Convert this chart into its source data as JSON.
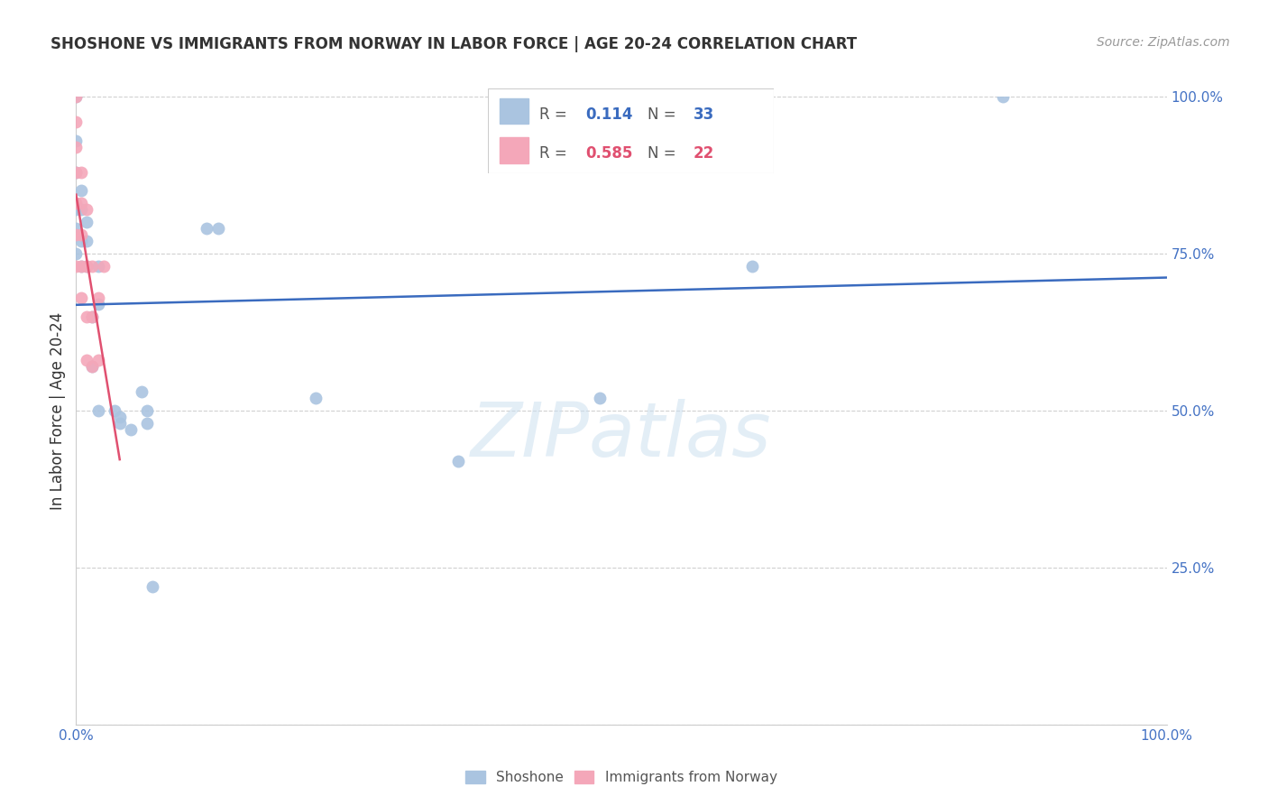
{
  "title": "SHOSHONE VS IMMIGRANTS FROM NORWAY IN LABOR FORCE | AGE 20-24 CORRELATION CHART",
  "source": "Source: ZipAtlas.com",
  "ylabel": "In Labor Force | Age 20-24",
  "xlim": [
    0.0,
    1.0
  ],
  "ylim": [
    0.0,
    1.0
  ],
  "xtick_pos": [
    0.0,
    0.1,
    0.2,
    0.3,
    0.4,
    0.5,
    0.6,
    0.7,
    0.8,
    0.9,
    1.0
  ],
  "xtick_labels": [
    "0.0%",
    "",
    "",
    "",
    "",
    "",
    "",
    "",
    "",
    "",
    "100.0%"
  ],
  "ytick_pos": [
    0.0,
    0.25,
    0.5,
    0.75,
    1.0
  ],
  "ytick_labels": [
    "",
    "25.0%",
    "50.0%",
    "75.0%",
    "100.0%"
  ],
  "blue_R": "0.114",
  "blue_N": "33",
  "pink_R": "0.585",
  "pink_N": "22",
  "shoshone_color": "#aac4e0",
  "norway_color": "#f4a7b9",
  "trendline_blue_color": "#3a6bbf",
  "trendline_pink_color": "#e05070",
  "legend_label_blue": "Shoshone",
  "legend_label_pink": "Immigrants from Norway",
  "watermark": "ZIPatlas",
  "shoshone_x": [
    0.0,
    0.0,
    0.0,
    0.0,
    0.0,
    0.0,
    0.005,
    0.005,
    0.005,
    0.005,
    0.01,
    0.01,
    0.01,
    0.015,
    0.015,
    0.02,
    0.02,
    0.02,
    0.035,
    0.04,
    0.04,
    0.05,
    0.06,
    0.065,
    0.065,
    0.07,
    0.12,
    0.13,
    0.22,
    0.35,
    0.48,
    0.62,
    0.85
  ],
  "shoshone_y": [
    1.0,
    0.93,
    0.88,
    0.82,
    0.79,
    0.75,
    0.85,
    0.82,
    0.77,
    0.73,
    0.8,
    0.77,
    0.73,
    0.65,
    0.57,
    0.73,
    0.67,
    0.5,
    0.5,
    0.49,
    0.48,
    0.47,
    0.53,
    0.5,
    0.48,
    0.22,
    0.79,
    0.79,
    0.52,
    0.42,
    0.52,
    0.73,
    1.0
  ],
  "norway_x": [
    0.0,
    0.0,
    0.0,
    0.0,
    0.0,
    0.0,
    0.0,
    0.005,
    0.005,
    0.005,
    0.005,
    0.005,
    0.01,
    0.01,
    0.01,
    0.01,
    0.015,
    0.015,
    0.015,
    0.02,
    0.02,
    0.025
  ],
  "norway_y": [
    1.0,
    0.96,
    0.92,
    0.88,
    0.83,
    0.78,
    0.73,
    0.88,
    0.83,
    0.78,
    0.73,
    0.68,
    0.82,
    0.73,
    0.65,
    0.58,
    0.73,
    0.65,
    0.57,
    0.68,
    0.58,
    0.73
  ],
  "tick_color": "#4472c4",
  "grid_color": "#d0d0d0",
  "spine_color": "#cccccc",
  "title_fontsize": 12,
  "source_fontsize": 10,
  "tick_fontsize": 11,
  "ylabel_fontsize": 12
}
